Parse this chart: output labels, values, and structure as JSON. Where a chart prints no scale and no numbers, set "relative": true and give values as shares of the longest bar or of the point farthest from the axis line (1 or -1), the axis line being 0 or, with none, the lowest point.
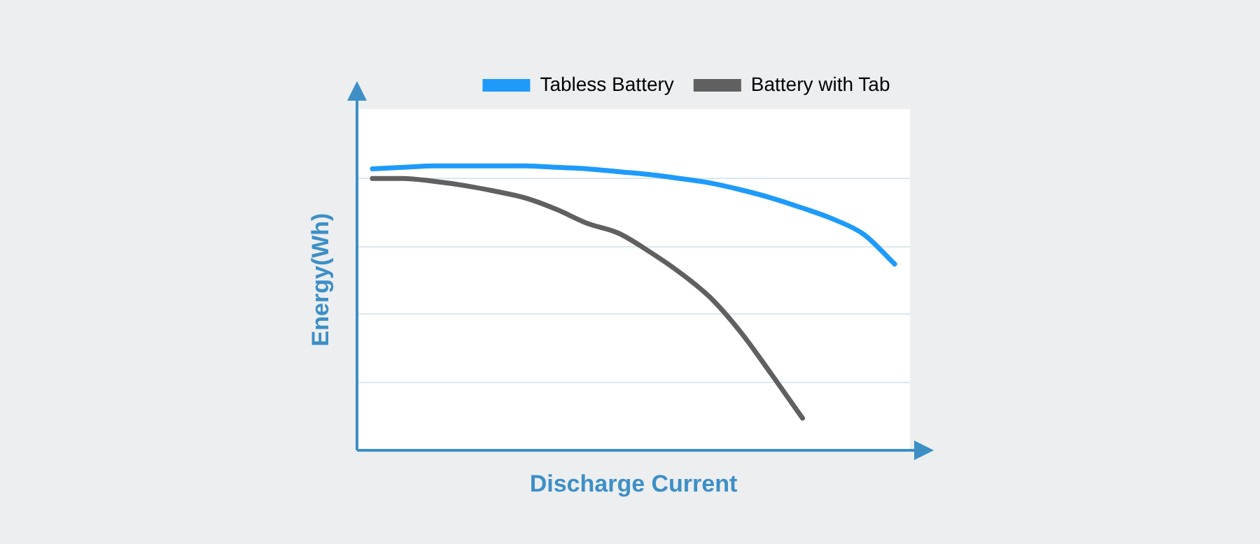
{
  "chart_data": {
    "type": "line",
    "relative": true,
    "xlabel": "Discharge Current",
    "ylabel": "Energy(Wh)",
    "legend": "top right",
    "grid": "y",
    "marker": "none",
    "line_style": "solid",
    "categories": [
      null,
      null,
      null,
      null,
      null,
      null,
      null,
      null,
      null,
      null,
      null,
      null,
      null,
      null,
      null,
      null,
      null,
      null
    ],
    "series": [
      {
        "name": "Tabless Battery",
        "color": "#1e9bfa",
        "values": [
          0.99,
          0.995,
          1,
          1,
          1,
          1,
          0.995,
          0.99,
          0.98,
          0.97,
          0.956,
          0.94,
          0.916,
          0.887,
          0.852,
          0.813,
          0.759,
          0.655
        ]
      },
      {
        "name": "Battery with Tab",
        "color": "#606060",
        "values": [
          0.956,
          0.956,
          0.946,
          0.931,
          0.911,
          0.887,
          0.847,
          0.798,
          0.764,
          0.7,
          0.626,
          0.537,
          0.414,
          0.266,
          0.113,
          null,
          null,
          null
        ]
      }
    ]
  }
}
